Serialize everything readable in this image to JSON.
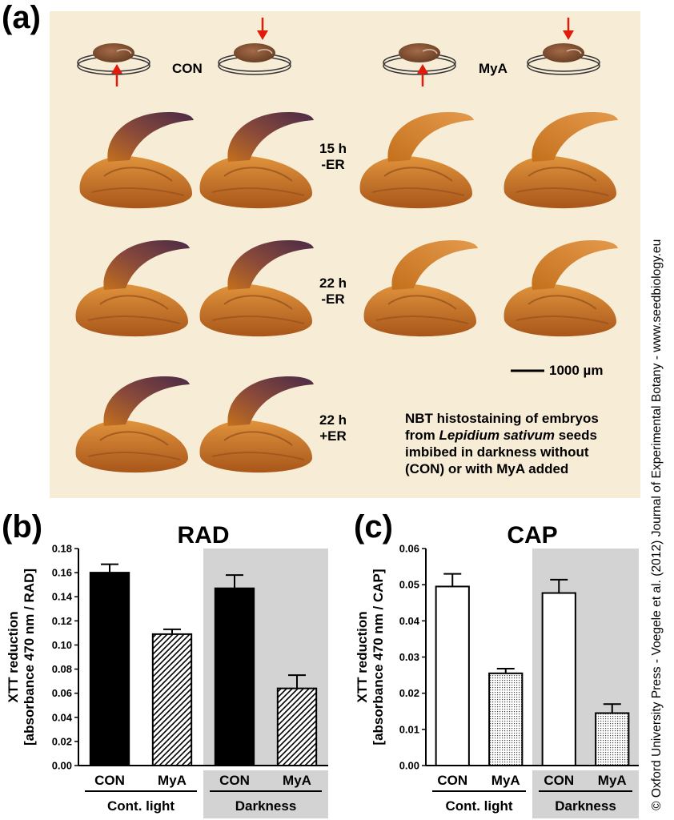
{
  "panel_labels": {
    "a": "(a)",
    "b": "(b)",
    "c": "(c)"
  },
  "panel_a": {
    "treatments": [
      "CON",
      "MyA"
    ],
    "rows": [
      {
        "label_line1": "15 h",
        "label_line2": "-ER"
      },
      {
        "label_line1": "22 h",
        "label_line2": "-ER"
      },
      {
        "label_line1": "22 h",
        "label_line2": "+ER"
      }
    ],
    "scale_bar": "1000 µm",
    "caption_parts": [
      "NBT histostaining of embryos",
      "from ",
      "Lepidium sativum",
      " seeds",
      "imbibed in darkness without",
      "(CON) or with MyA added"
    ],
    "colors": {
      "background": "#f7ecd5",
      "embryo": "#c4701c",
      "stain": "#5a3550",
      "arrow": "#e11b0c"
    }
  },
  "credit": "© Oxford University Press - Voegele et al. (2012) Journal of Experimental Botany - www.seedbiology.eu",
  "chart_data": [
    {
      "type": "bar",
      "title": "RAD",
      "ylabel_line1": "XTT reduction",
      "ylabel_line2": "[absorbance 470 nm / RAD]",
      "categories": [
        "CON",
        "MyA",
        "CON",
        "MyA"
      ],
      "values": [
        0.16,
        0.109,
        0.147,
        0.064
      ],
      "errors": [
        0.007,
        0.004,
        0.011,
        0.011
      ],
      "fills": [
        "solid",
        "hatch",
        "solid",
        "hatch"
      ],
      "ylim": [
        0,
        0.18
      ],
      "yticks": [
        "0.00",
        "0.02",
        "0.04",
        "0.06",
        "0.08",
        "0.10",
        "0.12",
        "0.14",
        "0.16",
        "0.18"
      ],
      "groups": [
        "Cont. light",
        "Darkness"
      ],
      "shaded_group": "Darkness"
    },
    {
      "type": "bar",
      "title": "CAP",
      "ylabel_line1": "XTT reduction",
      "ylabel_line2": "[absorbance 470 nm / CAP]",
      "categories": [
        "CON",
        "MyA",
        "CON",
        "MyA"
      ],
      "values": [
        0.0495,
        0.0255,
        0.0477,
        0.0145
      ],
      "errors": [
        0.0035,
        0.0013,
        0.0037,
        0.0025
      ],
      "fills": [
        "white",
        "dots",
        "white",
        "dots"
      ],
      "ylim": [
        0,
        0.06
      ],
      "yticks": [
        "0.00",
        "0.01",
        "0.02",
        "0.03",
        "0.04",
        "0.05",
        "0.06"
      ],
      "groups": [
        "Cont. light",
        "Darkness"
      ],
      "shaded_group": "Darkness"
    }
  ]
}
